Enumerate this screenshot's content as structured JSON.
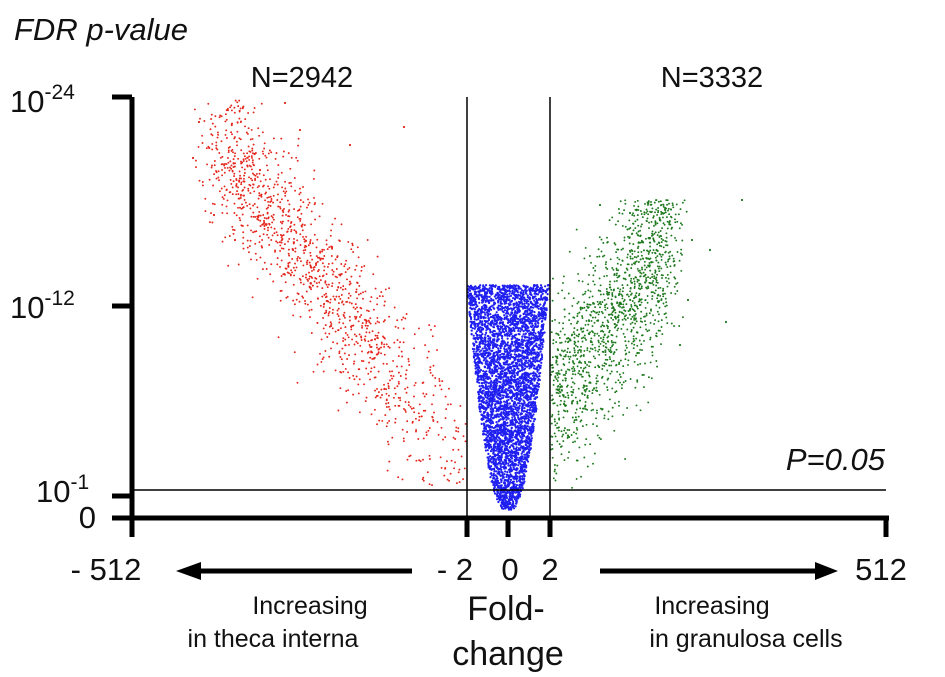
{
  "chart_data": {
    "type": "scatter",
    "title": "",
    "ylabel": "FDR p-value",
    "xlabel": "Fold-change",
    "xlabel_lines": [
      "Fold-",
      "change"
    ],
    "x_scale": "log2",
    "y_scale": "-log10",
    "x_ticks": [
      {
        "value": -512,
        "label": "- 512"
      },
      {
        "value": -2,
        "label": "- 2"
      },
      {
        "value": 0,
        "label": "0"
      },
      {
        "value": 2,
        "label": "2"
      },
      {
        "value": 512,
        "label": "512"
      }
    ],
    "y_ticks": [
      {
        "value": 0,
        "base": "0",
        "exp": ""
      },
      {
        "value": 0.1,
        "base": "10",
        "exp": "-1"
      },
      {
        "value": 1e-12,
        "base": "10",
        "exp": "-12"
      },
      {
        "value": 1e-24,
        "base": "10",
        "exp": "-24"
      }
    ],
    "threshold": {
      "p": 0.05,
      "label": "P=0.05"
    },
    "fold_cutoffs": [
      -2,
      2
    ],
    "counts": [
      {
        "label": "N=2942",
        "side": "left"
      },
      {
        "label": "N=3332",
        "side": "right"
      }
    ],
    "directions": [
      {
        "side": "left",
        "lines": [
          "Increasing",
          "in theca interna"
        ]
      },
      {
        "side": "right",
        "lines": [
          "Increasing",
          "in granulosa cells"
        ]
      }
    ],
    "series": [
      {
        "color": "#e4261c",
        "n": 2942,
        "region": "fold < -2, p < 0.05"
      },
      {
        "color": "#1f1ff0",
        "region": "-2 <= fold <= 2"
      },
      {
        "color": "#1f7a1f",
        "n": 3332,
        "region": "fold > 2, p < 0.05"
      }
    ],
    "grid": false
  }
}
